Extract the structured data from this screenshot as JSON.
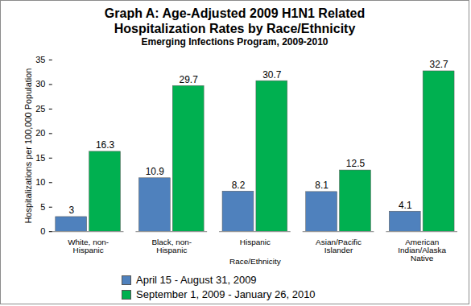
{
  "chart_data": {
    "type": "bar",
    "title": "Graph A: Age-Adjusted 2009 H1N1 Related Hospitalization  Rates by Race/Ethnicity",
    "subtitle": "Emerging Infections Program, 2009-2010",
    "x_label": "Race/Ethnicity",
    "y_label": "Hospitalizations per 100,000 Population",
    "categories": [
      "White, non-Hispanic",
      "Black, non-Hispanic",
      "Hispanic",
      "Asian/Pacific Islander",
      "American Indian/Alaska Native"
    ],
    "series": [
      {
        "name": "April 15 - August 31, 2009",
        "color": "#4f81bd",
        "values": [
          3,
          10.9,
          8.2,
          8.1,
          4.1
        ]
      },
      {
        "name": "September 1, 2009 - January 26, 2010",
        "color": "#00b050",
        "values": [
          16.3,
          29.7,
          30.7,
          12.5,
          32.7
        ]
      }
    ],
    "ylim": [
      0,
      35
    ],
    "yticks": [
      0,
      5,
      10,
      15,
      20,
      25,
      30,
      35
    ],
    "grid": false,
    "legend": "bottom",
    "data_labels": true
  }
}
